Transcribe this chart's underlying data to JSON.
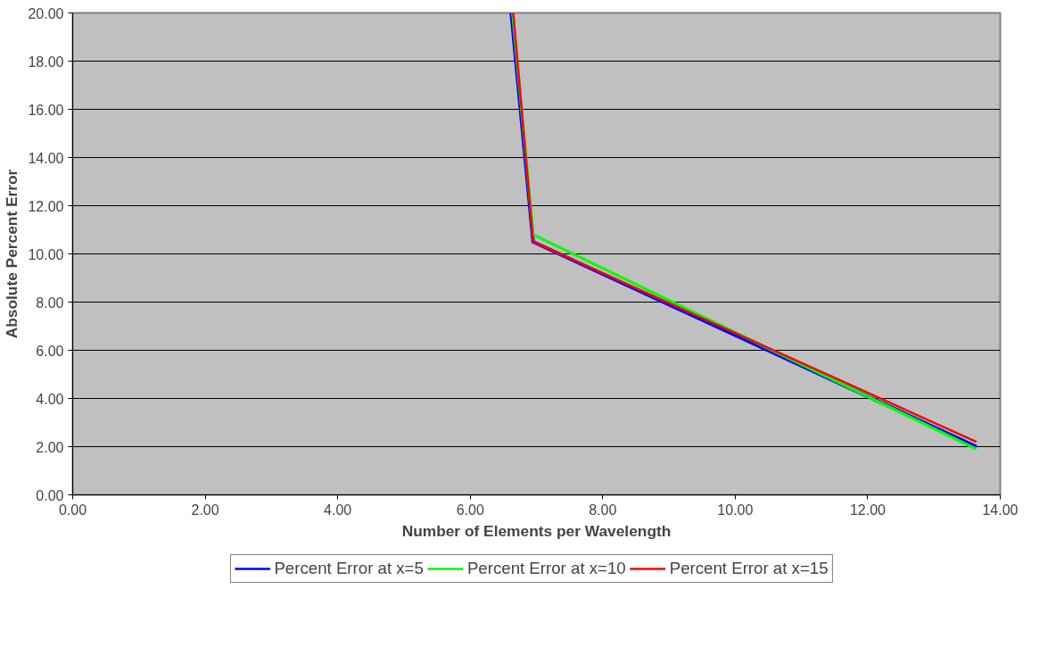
{
  "chart_data": {
    "type": "line",
    "xlabel": "Number of Elements per Wavelength",
    "ylabel": "Absolute Percent Error",
    "xlim": [
      0,
      14
    ],
    "ylim": [
      0,
      20
    ],
    "xticks": [
      {
        "value": 0,
        "label": "0.00"
      },
      {
        "value": 2,
        "label": "2.00"
      },
      {
        "value": 4,
        "label": "4.00"
      },
      {
        "value": 6,
        "label": "6.00"
      },
      {
        "value": 8,
        "label": "8.00"
      },
      {
        "value": 10,
        "label": "10.00"
      },
      {
        "value": 12,
        "label": "12.00"
      },
      {
        "value": 14,
        "label": "14.00"
      }
    ],
    "yticks": [
      {
        "value": 0,
        "label": "0.00"
      },
      {
        "value": 2,
        "label": "2.00"
      },
      {
        "value": 4,
        "label": "4.00"
      },
      {
        "value": 6,
        "label": "6.00"
      },
      {
        "value": 8,
        "label": "8.00"
      },
      {
        "value": 10,
        "label": "10.00"
      },
      {
        "value": 12,
        "label": "12.00"
      },
      {
        "value": 14,
        "label": "14.00"
      },
      {
        "value": 16,
        "label": "16.00"
      },
      {
        "value": 18,
        "label": "18.00"
      },
      {
        "value": 20,
        "label": "20.00"
      }
    ],
    "grid": "y",
    "legend": "bottom",
    "marker": "none",
    "line_style": "solid",
    "series": [
      {
        "name": "Percent Error at x=5",
        "color": "#0000ff",
        "x": [
          6.62,
          6.95,
          13.64
        ],
        "values": [
          20,
          10.5,
          2.0
        ]
      },
      {
        "name": "Percent Error at x=10",
        "color": "#00ff00",
        "x": [
          6.64,
          6.95,
          13.64
        ],
        "values": [
          20,
          10.8,
          1.9
        ]
      },
      {
        "name": "Percent Error at x=15",
        "color": "#ff0000",
        "x": [
          6.65,
          6.95,
          13.64
        ],
        "values": [
          20,
          10.5,
          2.2
        ]
      }
    ]
  }
}
